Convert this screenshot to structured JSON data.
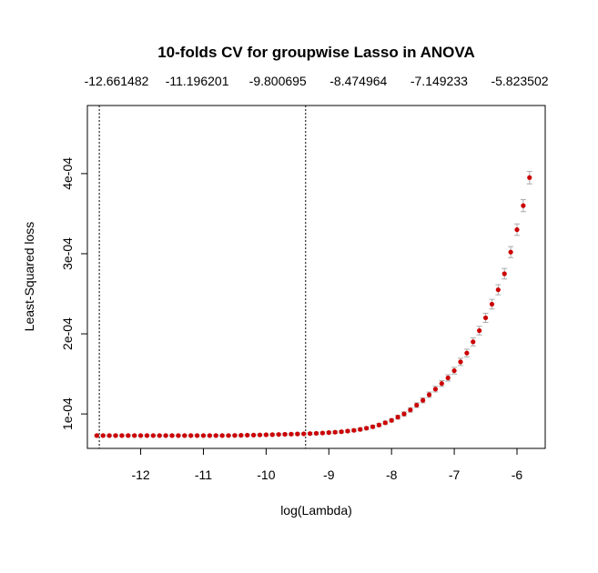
{
  "chart_data": {
    "type": "scatter",
    "title": "10-folds CV for groupwise Lasso in ANOVA",
    "xlabel": "log(Lambda)",
    "ylabel": "Least-Squared loss",
    "xlim": [
      -12.85,
      -5.55
    ],
    "ylim": [
      5.7e-05,
      0.000485
    ],
    "x_ticks": [
      -12,
      -11,
      -10,
      -9,
      -8,
      -7,
      -6
    ],
    "x_tick_labels": [
      "-12",
      "-11",
      "-10",
      "-9",
      "-8",
      "-7",
      "-6"
    ],
    "y_ticks": [
      0.0001,
      0.0002,
      0.0003,
      0.0004
    ],
    "y_tick_labels": [
      "1e-04",
      "2e-04",
      "3e-04",
      "4e-04"
    ],
    "top_axis_labels": [
      "-12.661482",
      "-11.196201",
      "-9.800695",
      "-8.474964",
      "-7.149233",
      "-5.823502"
    ],
    "vlines": [
      -12.66,
      -9.37
    ],
    "grid": false,
    "point_color": "#cc0000",
    "errorbar_color": "#aaaaaa",
    "series": [
      {
        "x": [
          -12.7,
          -12.6,
          -12.5,
          -12.4,
          -12.3,
          -12.2,
          -12.1,
          -12.0,
          -11.9,
          -11.8,
          -11.7,
          -11.6,
          -11.5,
          -11.4,
          -11.3,
          -11.2,
          -11.1,
          -11.0,
          -10.9,
          -10.8,
          -10.7,
          -10.6,
          -10.5,
          -10.4,
          -10.3,
          -10.2,
          -10.1,
          -10.0,
          -9.9,
          -9.8,
          -9.7,
          -9.6,
          -9.5,
          -9.4,
          -9.3,
          -9.2,
          -9.1,
          -9.0,
          -8.9,
          -8.8,
          -8.7,
          -8.6,
          -8.5,
          -8.4,
          -8.3,
          -8.2,
          -8.1,
          -8.0,
          -7.9,
          -7.8,
          -7.7,
          -7.6,
          -7.5,
          -7.4,
          -7.3,
          -7.2,
          -7.1,
          -7.0,
          -6.9,
          -6.8,
          -6.7,
          -6.6,
          -6.5,
          -6.4,
          -6.3,
          -6.2,
          -6.1,
          -6.0,
          -5.9,
          -5.8
        ],
        "y": [
          7.3e-05,
          7.3e-05,
          7.3e-05,
          7.3e-05,
          7.3e-05,
          7.3e-05,
          7.3e-05,
          7.3e-05,
          7.3e-05,
          7.3e-05,
          7.3e-05,
          7.3e-05,
          7.3e-05,
          7.3e-05,
          7.3e-05,
          7.3e-05,
          7.3e-05,
          7.3e-05,
          7.3e-05,
          7.3e-05,
          7.3e-05,
          7.31e-05,
          7.32e-05,
          7.33e-05,
          7.35e-05,
          7.36e-05,
          7.38e-05,
          7.4e-05,
          7.42e-05,
          7.44e-05,
          7.46e-05,
          7.48e-05,
          7.5e-05,
          7.52e-05,
          7.55e-05,
          7.58e-05,
          7.62e-05,
          7.67e-05,
          7.72e-05,
          7.78e-05,
          7.86e-05,
          7.95e-05,
          8.07e-05,
          8.22e-05,
          8.4e-05,
          8.62e-05,
          8.9e-05,
          9.2e-05,
          9.6e-05,
          0.0001,
          0.000105,
          0.000111,
          0.000117,
          0.000124,
          0.000131,
          0.000138,
          0.000145,
          0.000154,
          0.000165,
          0.000176,
          0.00019,
          0.000204,
          0.00022,
          0.000237,
          0.000255,
          0.000275,
          0.000302,
          0.00033,
          0.00036,
          0.000395
        ],
        "err": [
          1e-06,
          1e-06,
          1e-06,
          1e-06,
          1e-06,
          1e-06,
          1e-06,
          1e-06,
          1e-06,
          1e-06,
          1e-06,
          1e-06,
          1e-06,
          1e-06,
          1e-06,
          1e-06,
          1e-06,
          1e-06,
          1e-06,
          1e-06,
          1e-06,
          1e-06,
          1e-06,
          1e-06,
          1e-06,
          1e-06,
          1e-06,
          1.1e-06,
          1.1e-06,
          1.1e-06,
          1.1e-06,
          1.2e-06,
          1.2e-06,
          1.2e-06,
          1.3e-06,
          1.3e-06,
          1.3e-06,
          1.4e-06,
          1.4e-06,
          1.5e-06,
          1.5e-06,
          1.6e-06,
          1.7e-06,
          1.8e-06,
          1.9e-06,
          2e-06,
          2.1e-06,
          2.2e-06,
          2.4e-06,
          2.5e-06,
          2.7e-06,
          2.9e-06,
          3.1e-06,
          3.3e-06,
          3.5e-06,
          3.7e-06,
          4e-06,
          4.2e-06,
          4.5e-06,
          4.8e-06,
          5.1e-06,
          5.4e-06,
          5.7e-06,
          6e-06,
          6.3e-06,
          6.6e-06,
          6.9e-06,
          7.2e-06,
          7.5e-06,
          7.8e-06
        ]
      }
    ]
  }
}
